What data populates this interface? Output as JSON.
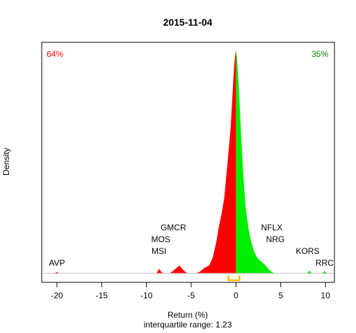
{
  "chart_data": {
    "type": "area",
    "title": "2015-11-04",
    "xlabel": "Return (%)",
    "ylabel": "Density",
    "subtitle": "interquartile range: 1.23",
    "xlim": [
      -21.7,
      11.0
    ],
    "ylim": [
      0,
      1
    ],
    "x_ticks": [
      -20,
      -15,
      -10,
      -5,
      0,
      5,
      10
    ],
    "x_tick_labels": [
      "-20",
      "-15",
      "-10",
      "-5",
      "0",
      "5",
      "10"
    ],
    "grid": false,
    "left_share": {
      "label": "64%",
      "color": "#ff0000"
    },
    "right_share": {
      "label": "35%",
      "color": "#008000"
    },
    "split_at": 0,
    "interquartile_range": {
      "value": 1.23,
      "from": -0.85,
      "to": 0.38,
      "color": "#ffc000"
    },
    "series": [
      {
        "color_negative": "#ff0000",
        "color_positive": "#00ee00",
        "density": [
          [
            -20.3,
            0
          ],
          [
            -20.0,
            0.006
          ],
          [
            -19.7,
            0
          ],
          [
            -8.9,
            0
          ],
          [
            -8.6,
            0.02
          ],
          [
            -8.3,
            0.005
          ],
          [
            -8.0,
            0
          ],
          [
            -7.4,
            0
          ],
          [
            -7.0,
            0.012
          ],
          [
            -6.6,
            0.025
          ],
          [
            -6.3,
            0.035
          ],
          [
            -6.0,
            0.02
          ],
          [
            -5.7,
            0.008
          ],
          [
            -5.4,
            0
          ],
          [
            -4.5,
            0
          ],
          [
            -4.0,
            0.008
          ],
          [
            -3.5,
            0.025
          ],
          [
            -3.0,
            0.035
          ],
          [
            -2.6,
            0.07
          ],
          [
            -2.2,
            0.14
          ],
          [
            -1.9,
            0.21
          ],
          [
            -1.6,
            0.27
          ],
          [
            -1.3,
            0.34
          ],
          [
            -1.0,
            0.47
          ],
          [
            -0.8,
            0.56
          ],
          [
            -0.6,
            0.65
          ],
          [
            -0.4,
            0.79
          ],
          [
            -0.2,
            0.93
          ],
          [
            -0.05,
            0.99
          ],
          [
            0.0,
            0.995
          ],
          [
            0.1,
            0.97
          ],
          [
            0.3,
            0.85
          ],
          [
            0.5,
            0.68
          ],
          [
            0.7,
            0.52
          ],
          [
            0.9,
            0.39
          ],
          [
            1.1,
            0.29
          ],
          [
            1.4,
            0.2
          ],
          [
            1.7,
            0.14
          ],
          [
            2.0,
            0.1
          ],
          [
            2.3,
            0.075
          ],
          [
            2.6,
            0.06
          ],
          [
            2.9,
            0.05
          ],
          [
            3.2,
            0.04
          ],
          [
            3.5,
            0.025
          ],
          [
            3.8,
            0.012
          ],
          [
            4.1,
            0.004
          ],
          [
            4.4,
            0
          ],
          [
            7.9,
            0
          ],
          [
            8.2,
            0.012
          ],
          [
            8.5,
            0
          ],
          [
            9.6,
            0
          ],
          [
            9.9,
            0.01
          ],
          [
            10.2,
            0
          ]
        ]
      }
    ],
    "annotations": [
      {
        "text": "AVP",
        "x": -20.0,
        "tier": 1
      },
      {
        "text": "GMCR",
        "x": -7.0,
        "tier": 4
      },
      {
        "text": "MOS",
        "x": -8.4,
        "tier": 3
      },
      {
        "text": "MSI",
        "x": -8.6,
        "tier": 2
      },
      {
        "text": "NFLX",
        "x": 4.0,
        "tier": 4
      },
      {
        "text": "NRG",
        "x": 4.4,
        "tier": 3
      },
      {
        "text": "KORS",
        "x": 8.0,
        "tier": 2
      },
      {
        "text": "RRC",
        "x": 9.9,
        "tier": 1
      }
    ]
  }
}
